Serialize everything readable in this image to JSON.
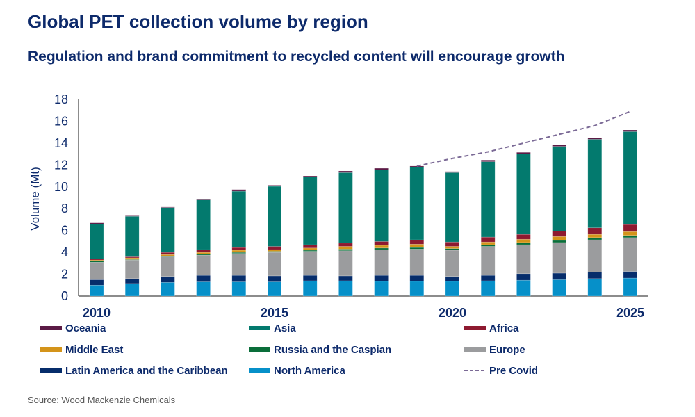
{
  "chart_data": {
    "type": "bar",
    "stacked": true,
    "title": "Global PET collection volume by region",
    "subtitle": "Regulation and brand commitment to recycled content will encourage growth",
    "xlabel": "",
    "ylabel": "Volume (Mt)",
    "ylim": [
      0,
      18
    ],
    "yticks": [
      0,
      2,
      4,
      6,
      8,
      10,
      12,
      14,
      16,
      18
    ],
    "xticks": [
      "2010",
      "2015",
      "2020",
      "2025"
    ],
    "categories": [
      2010,
      2011,
      2012,
      2013,
      2014,
      2015,
      2016,
      2017,
      2018,
      2019,
      2020,
      2021,
      2022,
      2023,
      2024,
      2025
    ],
    "grid": false,
    "legend_position": "bottom",
    "series": [
      {
        "name": "North America",
        "color": "#0690c9",
        "values": [
          1.0,
          1.15,
          1.25,
          1.3,
          1.3,
          1.3,
          1.4,
          1.4,
          1.35,
          1.35,
          1.35,
          1.4,
          1.45,
          1.5,
          1.6,
          1.65
        ]
      },
      {
        "name": "Latin America and the Caribbean",
        "color": "#062d6b",
        "values": [
          0.5,
          0.45,
          0.55,
          0.6,
          0.6,
          0.55,
          0.5,
          0.45,
          0.55,
          0.55,
          0.45,
          0.5,
          0.6,
          0.6,
          0.6,
          0.6
        ]
      },
      {
        "name": "Europe",
        "color": "#9b9c9e",
        "values": [
          1.6,
          1.7,
          1.8,
          1.85,
          2.0,
          2.15,
          2.2,
          2.3,
          2.35,
          2.4,
          2.4,
          2.65,
          2.65,
          2.8,
          2.95,
          3.1
        ]
      },
      {
        "name": "Russia and the Caspian",
        "color": "#0a6e3a",
        "values": [
          0.1,
          0.05,
          0.05,
          0.1,
          0.1,
          0.1,
          0.1,
          0.15,
          0.15,
          0.15,
          0.15,
          0.15,
          0.2,
          0.2,
          0.2,
          0.2
        ]
      },
      {
        "name": "Middle East",
        "color": "#d4941a",
        "values": [
          0.1,
          0.15,
          0.15,
          0.15,
          0.2,
          0.15,
          0.2,
          0.25,
          0.25,
          0.3,
          0.2,
          0.25,
          0.3,
          0.35,
          0.3,
          0.35
        ]
      },
      {
        "name": "Africa",
        "color": "#8e1a30",
        "values": [
          0.1,
          0.1,
          0.2,
          0.25,
          0.25,
          0.3,
          0.3,
          0.3,
          0.35,
          0.4,
          0.4,
          0.45,
          0.45,
          0.5,
          0.6,
          0.65
        ]
      },
      {
        "name": "Asia",
        "color": "#037a6e",
        "values": [
          3.2,
          3.7,
          4.1,
          4.55,
          5.15,
          5.5,
          6.2,
          6.45,
          6.55,
          6.65,
          6.35,
          6.9,
          7.35,
          7.75,
          8.1,
          8.5
        ]
      },
      {
        "name": "Oceania",
        "color": "#5b1a45",
        "values": [
          0.1,
          0.05,
          0.05,
          0.1,
          0.15,
          0.1,
          0.1,
          0.15,
          0.15,
          0.1,
          0.1,
          0.15,
          0.15,
          0.15,
          0.15,
          0.15
        ]
      }
    ],
    "line_series": {
      "name": "Pre Covid",
      "color": "#7b6a96",
      "style": "dashed",
      "x": [
        2019,
        2020,
        2021,
        2022,
        2023,
        2024,
        2025
      ],
      "values": [
        11.9,
        12.6,
        13.2,
        14.0,
        14.8,
        15.6,
        16.9
      ]
    },
    "legend_order": [
      "Oceania",
      "Asia",
      "Africa",
      "Middle East",
      "Russia and the Caspian",
      "Europe",
      "Latin America and the Caribbean",
      "North America",
      "Pre Covid"
    ],
    "source": "Source: Wood Mackenzie Chemicals"
  }
}
